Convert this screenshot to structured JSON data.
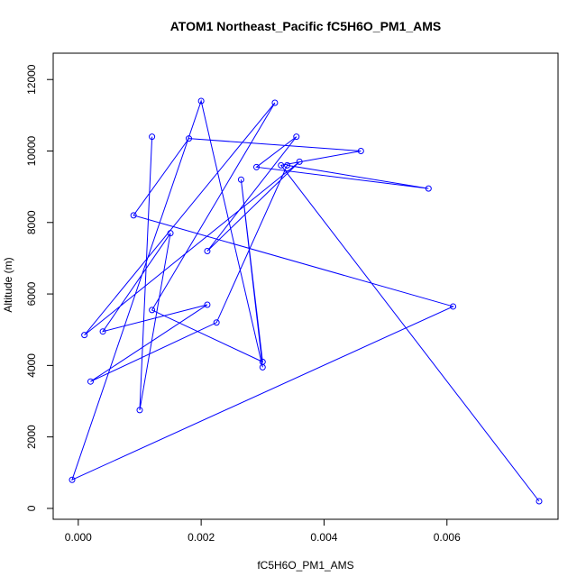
{
  "chart_data": {
    "type": "line",
    "title": "ATOM1 Northeast_Pacific fC5H6O_PM1_AMS",
    "xlabel": "fC5H6O_PM1_AMS",
    "ylabel": "Altitude (m)",
    "xlim": [
      -0.0001,
      0.0075
    ],
    "ylim": [
      200,
      11400
    ],
    "x_ticks": [
      0.0,
      0.002,
      0.004,
      0.006
    ],
    "x_tick_labels": [
      "0.000",
      "0.002",
      "0.004",
      "0.006"
    ],
    "y_ticks": [
      0,
      2000,
      4000,
      6000,
      8000,
      10000,
      12000
    ],
    "y_tick_labels": [
      "0",
      "2000",
      "4000",
      "6000",
      "8000",
      "10000",
      "12000"
    ],
    "grid": false,
    "color": "#0000ff",
    "series": [
      {
        "points": [
          {
            "x": 0.0075,
            "y": 200
          },
          {
            "x": 0.0033,
            "y": 9600
          },
          {
            "x": 0.0046,
            "y": 10000
          },
          {
            "x": 0.0018,
            "y": 10350
          },
          {
            "x": 0.0009,
            "y": 8200
          },
          {
            "x": 0.0061,
            "y": 5650
          },
          {
            "x": -0.0001,
            "y": 800
          },
          {
            "x": 0.002,
            "y": 11400
          },
          {
            "x": 0.003,
            "y": 3950
          },
          {
            "x": 0.00265,
            "y": 9200
          },
          {
            "x": 0.003,
            "y": 4100
          },
          {
            "x": 0.0012,
            "y": 5550
          },
          {
            "x": 0.0032,
            "y": 11350
          },
          {
            "x": 0.0001,
            "y": 4850
          },
          {
            "x": 0.0036,
            "y": 9700
          },
          {
            "x": 0.0021,
            "y": 7200
          },
          {
            "x": 0.00355,
            "y": 10400
          },
          {
            "x": 0.0029,
            "y": 9550
          },
          {
            "x": 0.0057,
            "y": 8950
          },
          {
            "x": 0.0034,
            "y": 9600
          },
          {
            "x": 0.00225,
            "y": 5200
          },
          {
            "x": 0.0002,
            "y": 3550
          },
          {
            "x": 0.0021,
            "y": 5700
          },
          {
            "x": 0.0004,
            "y": 4950
          },
          {
            "x": 0.0015,
            "y": 7700
          },
          {
            "x": 0.001,
            "y": 2750
          },
          {
            "x": 0.0012,
            "y": 10400
          }
        ]
      }
    ]
  }
}
